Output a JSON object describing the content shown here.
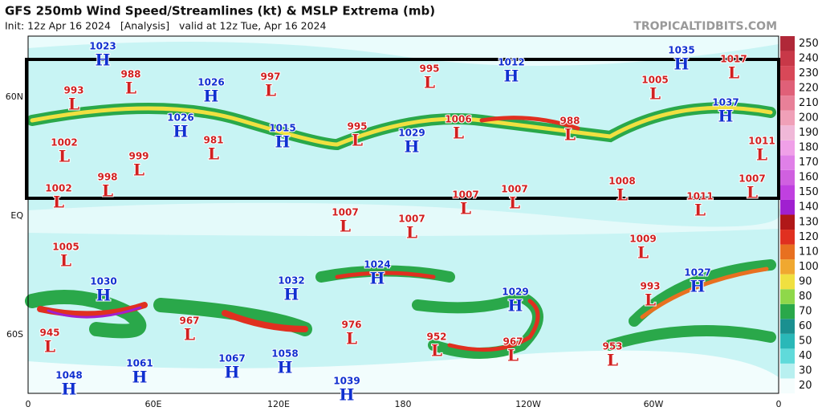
{
  "header": {
    "title": "GFS 250mb Wind Speed/Streamlines (kt) & MSLP Extrema (mb)",
    "subtitle": "Init: 12z Apr 16 2024   [Analysis]   valid at 12z Tue, Apr 16 2024",
    "brand": "TROPICALTIDBITS.COM"
  },
  "map": {
    "x_labels": [
      "0",
      "60E",
      "120E",
      "180",
      "120W",
      "60W",
      "0"
    ],
    "y_labels": [
      "60N",
      "EQ",
      "60S"
    ],
    "extrema": [
      {
        "type": "H",
        "value": 1023
      },
      {
        "type": "L",
        "value": 988
      },
      {
        "type": "L",
        "value": 993
      },
      {
        "type": "H",
        "value": 1026
      },
      {
        "type": "L",
        "value": 997
      },
      {
        "type": "L",
        "value": 995
      },
      {
        "type": "H",
        "value": 1012
      },
      {
        "type": "H",
        "value": 1035
      },
      {
        "type": "L",
        "value": 1017
      },
      {
        "type": "L",
        "value": 1005
      },
      {
        "type": "H",
        "value": 1037
      },
      {
        "type": "H",
        "value": 1026
      },
      {
        "type": "H",
        "value": 1015
      },
      {
        "type": "L",
        "value": 981
      },
      {
        "type": "L",
        "value": 995
      },
      {
        "type": "H",
        "value": 1029
      },
      {
        "type": "L",
        "value": 1006
      },
      {
        "type": "L",
        "value": 988
      },
      {
        "type": "L",
        "value": 1002
      },
      {
        "type": "L",
        "value": 999
      },
      {
        "type": "L",
        "value": 1011
      },
      {
        "type": "L",
        "value": 998
      },
      {
        "type": "L",
        "value": 1002
      },
      {
        "type": "L",
        "value": 1008
      },
      {
        "type": "L",
        "value": 1007
      },
      {
        "type": "L",
        "value": 1007
      },
      {
        "type": "L",
        "value": 1007
      },
      {
        "type": "L",
        "value": 1011
      },
      {
        "type": "L",
        "value": 1007
      },
      {
        "type": "L",
        "value": 1007
      },
      {
        "type": "L",
        "value": 1005
      },
      {
        "type": "L",
        "value": 1009
      },
      {
        "type": "H",
        "value": 1024
      },
      {
        "type": "H",
        "value": 1027
      },
      {
        "type": "H",
        "value": 1030
      },
      {
        "type": "H",
        "value": 1032
      },
      {
        "type": "H",
        "value": 1029
      },
      {
        "type": "L",
        "value": 993
      },
      {
        "type": "L",
        "value": 967
      },
      {
        "type": "L",
        "value": 976
      },
      {
        "type": "L",
        "value": 952
      },
      {
        "type": "L",
        "value": 967
      },
      {
        "type": "L",
        "value": 945
      },
      {
        "type": "L",
        "value": 953
      },
      {
        "type": "H",
        "value": 1067
      },
      {
        "type": "H",
        "value": 1058
      },
      {
        "type": "H",
        "value": 1061
      },
      {
        "type": "H",
        "value": 1048
      },
      {
        "type": "H",
        "value": 1039
      }
    ],
    "colors": {
      "H": "#1030d0",
      "L": "#d02020"
    }
  },
  "colorbar": {
    "levels": [
      20,
      30,
      40,
      50,
      60,
      70,
      80,
      90,
      100,
      110,
      120,
      130,
      140,
      150,
      160,
      170,
      180,
      190,
      200,
      210,
      220,
      230,
      240,
      250
    ],
    "colors": [
      "#f4fdfd",
      "#b8f0f0",
      "#60dada",
      "#2ab8b8",
      "#1a9090",
      "#2aa84a",
      "#8fd84a",
      "#f0e040",
      "#f0a830",
      "#e87020",
      "#e03020",
      "#b01818",
      "#a020d0",
      "#c040e0",
      "#d060e0",
      "#e080e8",
      "#f0a0e8",
      "#f0b8d8",
      "#f0a0b8",
      "#e88098",
      "#e06078",
      "#d84858",
      "#c83848",
      "#b02838"
    ]
  }
}
